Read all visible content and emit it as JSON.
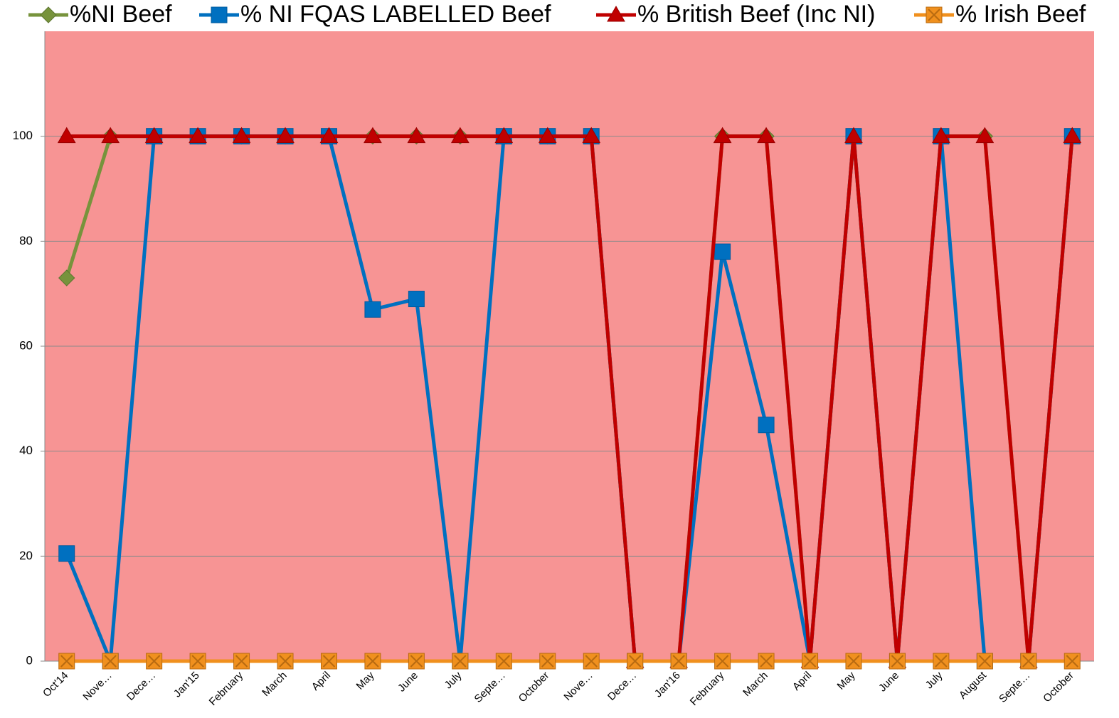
{
  "chart_data": {
    "type": "line",
    "categories": [
      "Oct'14",
      "Nove…",
      "Dece…",
      "Jan'15",
      "February",
      "March",
      "April",
      "May",
      "June",
      "July",
      "Septe…",
      "October",
      "Nove…",
      "Dece…",
      "Jan'16",
      "February",
      "March",
      "April",
      "May",
      "June",
      "July",
      "August",
      "Septe…",
      "October"
    ],
    "series": [
      {
        "name": "%NI Beef",
        "color": "#77933c",
        "marker": "diamond",
        "values": [
          73,
          100,
          100,
          100,
          100,
          100,
          100,
          100,
          100,
          100,
          100,
          100,
          100,
          0,
          0,
          100,
          100,
          0,
          100,
          0,
          100,
          100,
          0,
          100
        ]
      },
      {
        "name": "% NI FQAS LABELLED Beef",
        "color": "#0070c0",
        "marker": "square",
        "values": [
          20.5,
          0,
          100,
          100,
          100,
          100,
          100,
          67,
          69,
          0,
          100,
          100,
          100,
          0,
          0,
          78,
          45,
          0,
          100,
          0,
          100,
          0,
          0,
          100
        ]
      },
      {
        "name": "% British Beef (Inc NI)",
        "color": "#c00000",
        "marker": "triangle",
        "values": [
          100,
          100,
          100,
          100,
          100,
          100,
          100,
          100,
          100,
          100,
          100,
          100,
          100,
          0,
          0,
          100,
          100,
          0,
          100,
          0,
          100,
          100,
          0,
          100
        ]
      },
      {
        "name": "% Irish Beef",
        "color": "#f0901e",
        "marker": "xsquare",
        "values": [
          0,
          0,
          0,
          0,
          0,
          0,
          0,
          0,
          0,
          0,
          0,
          0,
          0,
          0,
          0,
          0,
          0,
          0,
          0,
          0,
          0,
          0,
          0,
          0
        ]
      }
    ],
    "ylim": [
      0,
      120
    ],
    "yticks": [
      0,
      20,
      40,
      60,
      80,
      100
    ],
    "grid": true,
    "plot_background": "#f79494"
  }
}
